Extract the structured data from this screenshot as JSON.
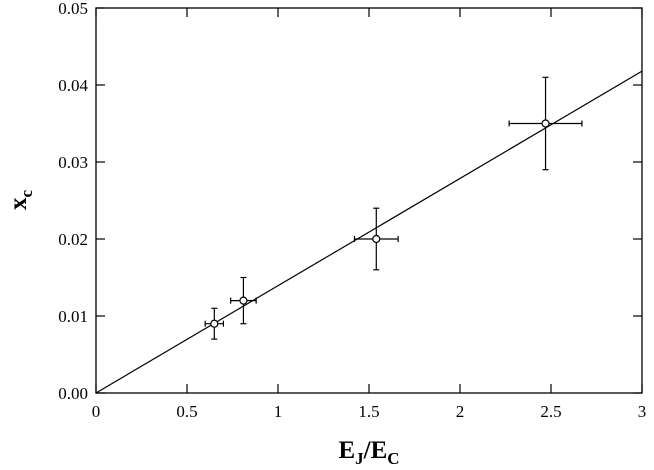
{
  "chart_data": {
    "type": "scatter",
    "title": "",
    "xlabel": {
      "main": "E",
      "sub1": "J",
      "slash": "/",
      "main2": "E",
      "sub2": "C"
    },
    "ylabel": {
      "main": "x",
      "sub": "c"
    },
    "xlim": [
      0,
      3
    ],
    "ylim": [
      0,
      0.05
    ],
    "x_ticks": [
      0,
      0.5,
      1,
      1.5,
      2,
      2.5,
      3
    ],
    "x_tick_labels": [
      "0",
      "0.5",
      "1",
      "1.5",
      "2",
      "2.5",
      "3"
    ],
    "y_ticks": [
      0,
      0.01,
      0.02,
      0.03,
      0.04,
      0.05
    ],
    "y_tick_labels": [
      "0.00",
      "0.01",
      "0.02",
      "0.03",
      "0.04",
      "0.05"
    ],
    "grid": false,
    "points": [
      {
        "x": 0.65,
        "y": 0.009,
        "xerr": 0.05,
        "yerr": 0.002
      },
      {
        "x": 0.81,
        "y": 0.012,
        "xerr": 0.07,
        "yerr": 0.003
      },
      {
        "x": 1.54,
        "y": 0.02,
        "xerr": 0.12,
        "yerr": 0.004
      },
      {
        "x": 2.47,
        "y": 0.035,
        "xerr": 0.2,
        "yerr": 0.006
      }
    ],
    "fit_line": {
      "x": [
        0,
        3
      ],
      "y": [
        0,
        0.0418
      ]
    }
  }
}
